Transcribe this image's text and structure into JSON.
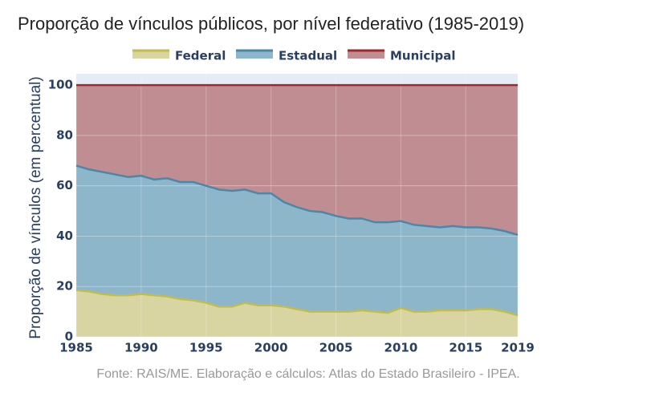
{
  "chart_data": {
    "type": "stacked_area",
    "title": "Proporção de vínculos públicos, por nível federativo (1985-2019)",
    "y_label": "Proporção de vínculos (em percentual)",
    "note": "Fonte: RAIS/ME. Elaboração e cálculos: Atlas do Estado Brasileiro - IPEA.",
    "x": [
      1985,
      1986,
      1987,
      1988,
      1989,
      1990,
      1991,
      1992,
      1993,
      1994,
      1995,
      1996,
      1997,
      1998,
      1999,
      2000,
      2001,
      2002,
      2003,
      2004,
      2005,
      2006,
      2007,
      2008,
      2009,
      2010,
      2011,
      2012,
      2013,
      2014,
      2015,
      2016,
      2017,
      2018,
      2019
    ],
    "series": [
      {
        "name": "Federal",
        "color": "#c4bc4a",
        "fill": "#d9d5a3",
        "values": [
          18.5,
          18,
          17,
          16.5,
          16.5,
          17,
          16.5,
          16,
          15,
          14.5,
          13.5,
          12,
          12,
          13.5,
          12.5,
          12.5,
          12,
          11,
          10,
          10,
          10,
          10,
          10.5,
          10,
          9.5,
          11.5,
          10,
          10,
          10.5,
          10.5,
          10.5,
          11,
          11,
          10,
          8.5
        ]
      },
      {
        "name": "Estadual",
        "color": "#4a87a8",
        "fill": "#8db6ca",
        "values": [
          49.5,
          48.5,
          48.5,
          48,
          47,
          47,
          46,
          47,
          46.5,
          47,
          46.5,
          46.5,
          46,
          45,
          44.5,
          44.5,
          41.5,
          40.5,
          40,
          39.5,
          38,
          37,
          36.5,
          35.5,
          36,
          34.5,
          34.5,
          34,
          33,
          33.5,
          33,
          32.5,
          32,
          32,
          32
        ]
      },
      {
        "name": "Municipal",
        "color": "#9e2a2b",
        "fill": "#c08e92",
        "values": [
          32,
          33.5,
          34.5,
          35.5,
          36.5,
          36,
          37.5,
          37,
          38.5,
          38.5,
          40,
          41.5,
          42,
          41.5,
          43,
          43,
          46.5,
          48.5,
          50,
          50.5,
          52,
          53,
          53,
          54.5,
          54.5,
          54,
          55.5,
          56,
          56.5,
          56,
          56.5,
          56.5,
          57,
          58,
          59.5
        ]
      }
    ],
    "xlim": [
      1985,
      2019
    ],
    "xticks": [
      1985,
      1990,
      1995,
      2000,
      2005,
      2010,
      2015,
      2019
    ],
    "ylim": [
      0,
      104.5
    ],
    "yticks": [
      0,
      20,
      40,
      60,
      80,
      100
    ],
    "grid": true
  }
}
